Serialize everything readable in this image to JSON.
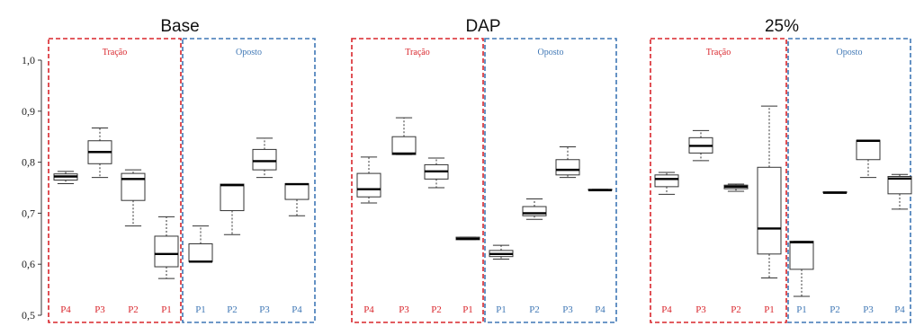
{
  "chart_data": [
    {
      "type": "boxplot",
      "title": "Base",
      "ylim": [
        0.5,
        1.0
      ],
      "yticks": [
        "0,5",
        "0,6",
        "0,7",
        "0,8",
        "0,9",
        "1,0"
      ],
      "regions": [
        {
          "label": "Tração",
          "color": "#d9262c"
        },
        {
          "label": "Oposto",
          "color": "#3f77b5"
        }
      ],
      "categories": [
        "P4",
        "P3",
        "P2",
        "P1",
        "P1",
        "P2",
        "P3",
        "P4"
      ],
      "category_region": [
        0,
        0,
        0,
        0,
        1,
        1,
        1,
        1
      ],
      "boxes": [
        {
          "min": 0.758,
          "q1": 0.765,
          "median": 0.772,
          "q3": 0.777,
          "max": 0.782
        },
        {
          "min": 0.77,
          "q1": 0.797,
          "median": 0.82,
          "q3": 0.842,
          "max": 0.867
        },
        {
          "min": 0.675,
          "q1": 0.725,
          "median": 0.767,
          "q3": 0.778,
          "max": 0.785
        },
        {
          "min": 0.572,
          "q1": 0.595,
          "median": 0.62,
          "q3": 0.655,
          "max": 0.693
        },
        {
          "min": 0.605,
          "q1": 0.605,
          "median": 0.605,
          "q3": 0.64,
          "max": 0.675
        },
        {
          "min": 0.658,
          "q1": 0.705,
          "median": 0.755,
          "q3": 0.757,
          "max": 0.757
        },
        {
          "min": 0.77,
          "q1": 0.785,
          "median": 0.802,
          "q3": 0.825,
          "max": 0.847
        },
        {
          "min": 0.695,
          "q1": 0.727,
          "median": 0.757,
          "q3": 0.758,
          "max": 0.758
        }
      ]
    },
    {
      "type": "boxplot",
      "title": "DAP",
      "ylim": [
        0.5,
        1.0
      ],
      "regions": [
        {
          "label": "Tração",
          "color": "#d9262c"
        },
        {
          "label": "Oposto",
          "color": "#3f77b5"
        }
      ],
      "categories": [
        "P4",
        "P3",
        "P2",
        "P1",
        "P1",
        "P2",
        "P3",
        "P4"
      ],
      "category_region": [
        0,
        0,
        0,
        0,
        1,
        1,
        1,
        1
      ],
      "boxes": [
        {
          "min": 0.72,
          "q1": 0.732,
          "median": 0.747,
          "q3": 0.778,
          "max": 0.81
        },
        {
          "min": 0.815,
          "q1": 0.815,
          "median": 0.817,
          "q3": 0.85,
          "max": 0.887
        },
        {
          "min": 0.75,
          "q1": 0.767,
          "median": 0.782,
          "q3": 0.795,
          "max": 0.808
        },
        {
          "min": 0.648,
          "q1": 0.648,
          "median": 0.65,
          "q3": 0.653,
          "max": 0.653
        },
        {
          "min": 0.61,
          "q1": 0.615,
          "median": 0.62,
          "q3": 0.627,
          "max": 0.637
        },
        {
          "min": 0.688,
          "q1": 0.695,
          "median": 0.7,
          "q3": 0.713,
          "max": 0.728
        },
        {
          "min": 0.77,
          "q1": 0.775,
          "median": 0.785,
          "q3": 0.805,
          "max": 0.83
        },
        {
          "min": 0.745,
          "q1": 0.745,
          "median": 0.745,
          "q3": 0.747,
          "max": 0.747
        }
      ]
    },
    {
      "type": "boxplot",
      "title": "25%",
      "ylim": [
        0.5,
        1.0
      ],
      "regions": [
        {
          "label": "Tração",
          "color": "#d9262c"
        },
        {
          "label": "Oposto",
          "color": "#3f77b5"
        }
      ],
      "categories": [
        "P4",
        "P3",
        "P2",
        "P1",
        "P1",
        "P2",
        "P3",
        "P4"
      ],
      "category_region": [
        0,
        0,
        0,
        0,
        1,
        1,
        1,
        1
      ],
      "boxes": [
        {
          "min": 0.737,
          "q1": 0.752,
          "median": 0.767,
          "q3": 0.775,
          "max": 0.78
        },
        {
          "min": 0.803,
          "q1": 0.818,
          "median": 0.832,
          "q3": 0.848,
          "max": 0.862
        },
        {
          "min": 0.743,
          "q1": 0.748,
          "median": 0.752,
          "q3": 0.755,
          "max": 0.757
        },
        {
          "min": 0.573,
          "q1": 0.62,
          "median": 0.67,
          "q3": 0.79,
          "max": 0.91
        },
        {
          "min": 0.537,
          "q1": 0.59,
          "median": 0.643,
          "q3": 0.645,
          "max": 0.645
        },
        {
          "min": 0.74,
          "q1": 0.74,
          "median": 0.74,
          "q3": 0.742,
          "max": 0.742
        },
        {
          "min": 0.77,
          "q1": 0.805,
          "median": 0.842,
          "q3": 0.843,
          "max": 0.843
        },
        {
          "min": 0.708,
          "q1": 0.738,
          "median": 0.768,
          "q3": 0.772,
          "max": 0.776
        }
      ]
    }
  ]
}
